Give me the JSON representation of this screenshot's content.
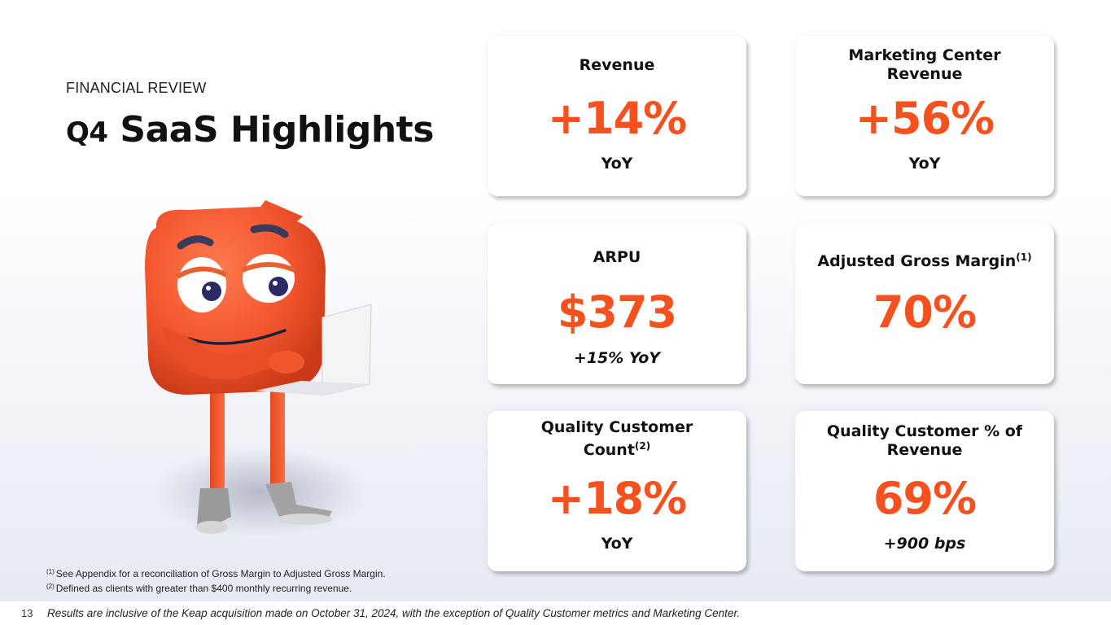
{
  "header": {
    "eyebrow": "FINANCIAL REVIEW",
    "title_prefix": "Q4",
    "title_main": "SaaS Highlights"
  },
  "cards": [
    {
      "label": "Revenue",
      "value": "+14%",
      "sub": "YoY"
    },
    {
      "label_line1": "Marketing Center",
      "label_line2": "Revenue",
      "value": "+56%",
      "sub": "YoY"
    },
    {
      "label": "ARPU",
      "value": "$373",
      "sub": "+15% YoY"
    },
    {
      "label": "Adjusted Gross Margin",
      "sup": "(1)",
      "value": "70%"
    },
    {
      "label_line1": "Quality Customer",
      "label_line2": "Count",
      "sup": "(2)",
      "value": "+18%",
      "sub": "YoY"
    },
    {
      "label_line1": "Quality Customer % of",
      "label_line2": "Revenue",
      "value": "69%",
      "sub": "+900 bps"
    }
  ],
  "footnotes": [
    {
      "marker": "(1)",
      "text": "See Appendix for a reconciliation of Gross Margin to Adjusted Gross Margin."
    },
    {
      "marker": "(2)",
      "text": "Defined as clients with greater than $400 monthly recurring revenue."
    }
  ],
  "footer": {
    "page_number": "13",
    "disclaimer": "Results are inclusive of the Keap acquisition made on October 31, 2024, with the exception of Quality Customer metrics and Marketing Center."
  },
  "colors": {
    "accent": "#f4511e",
    "mascot_body": "#f2542d"
  },
  "mascot": {
    "icon": "mascot-with-laptop-icon"
  }
}
